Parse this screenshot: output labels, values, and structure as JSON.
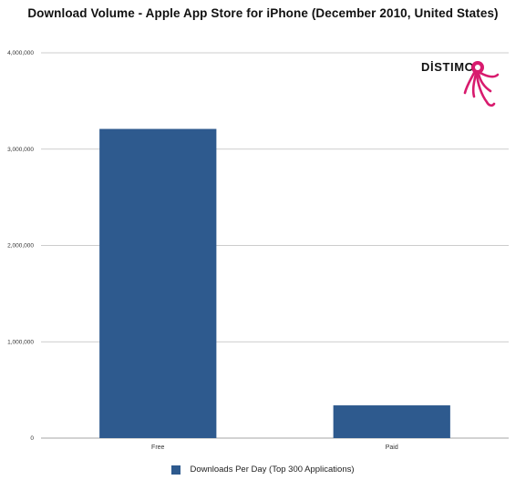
{
  "logo": {
    "text": "DİSTIMO",
    "accent_color": "#d81b6e"
  },
  "chart_data": {
    "type": "bar",
    "title": "Download Volume - Apple App Store for iPhone (December 2010, United States)",
    "categories": [
      "Free",
      "Paid"
    ],
    "series": [
      {
        "name": "Downloads Per Day (Top 300 Applications)",
        "values": [
          3210000,
          340000
        ],
        "color": "#2e5a8e"
      }
    ],
    "ylim": [
      0,
      4000000
    ],
    "yticks": [
      "0",
      "1,000,000",
      "2,000,000",
      "3,000,000",
      "4,000,000"
    ],
    "ytick_values": [
      0,
      1000000,
      2000000,
      3000000,
      4000000
    ],
    "xlabel": "",
    "ylabel": "",
    "grid": true,
    "legend_position": "bottom"
  }
}
